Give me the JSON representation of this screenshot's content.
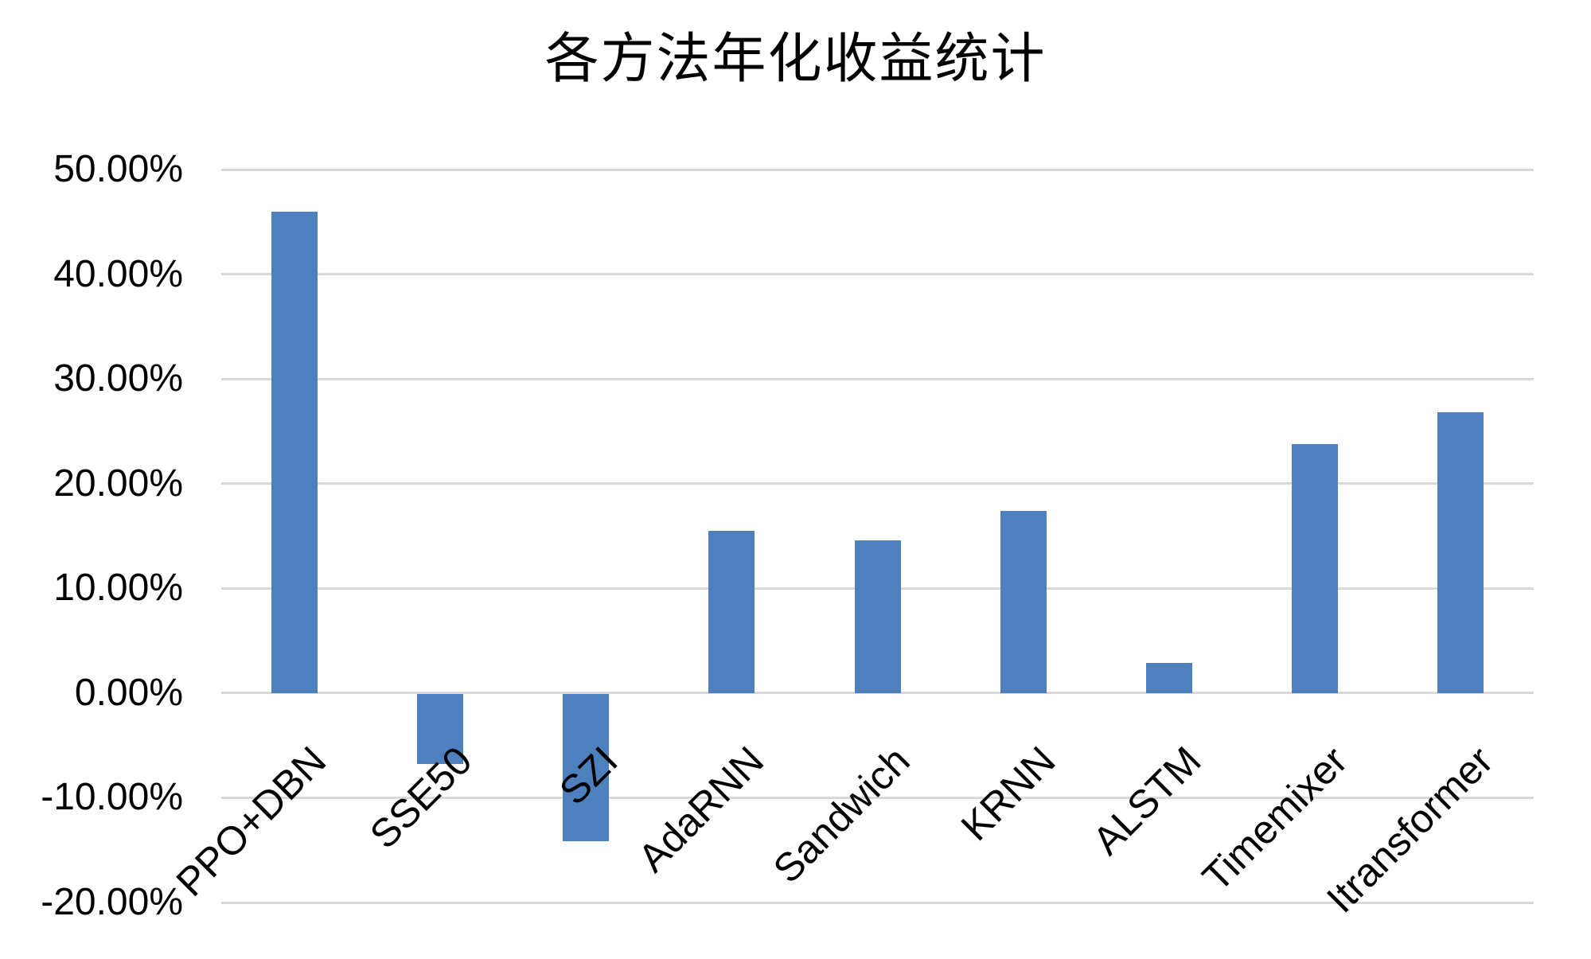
{
  "chart_data": {
    "type": "bar",
    "title": "各方法年化收益统计",
    "categories": [
      "PPO+DBN",
      "SSE50",
      "SZI",
      "AdaRNN",
      "Sandwich",
      "KRNN",
      "ALSTM",
      "Timemixer",
      "Itransformer"
    ],
    "values": [
      46.0,
      -6.7,
      -14.0,
      15.5,
      14.6,
      17.4,
      2.9,
      23.8,
      26.8
    ],
    "values_unit": "percent",
    "xlabel": "",
    "ylabel": "",
    "ylim": [
      -20,
      50
    ],
    "ytick_step": 10,
    "yticklabels": [
      "50.00%",
      "40.00%",
      "30.00%",
      "20.00%",
      "10.00%",
      "0.00%",
      "-10.00%",
      "-20.00%"
    ],
    "grid": true,
    "legend": null,
    "bar_color": "#4E80BE",
    "gridline_color": "#D9D9D9",
    "text_color": "#000000",
    "background_color": "#FFFFFF"
  }
}
